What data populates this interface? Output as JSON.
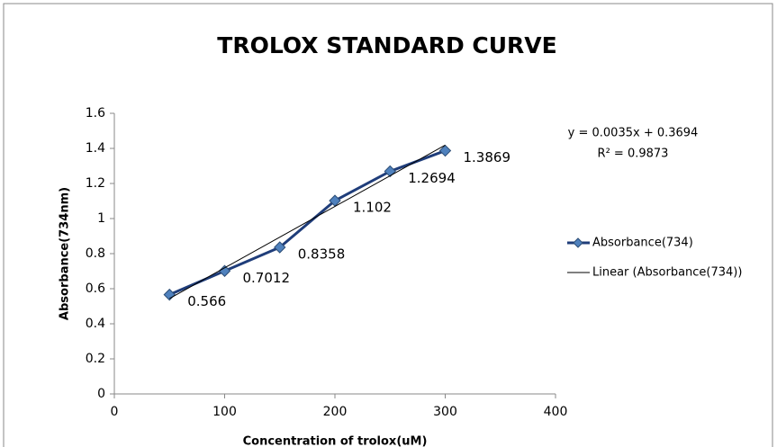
{
  "chart_data": {
    "type": "line",
    "title": "TROLOX STANDARD CURVE",
    "x_label": "Concentration of trolox(uM)",
    "y_label": "Absorbance(734nm)",
    "annotations": [
      "y = 0.0035x + 0.3694",
      "R² = 0.9873"
    ],
    "series": [
      {
        "name": "Absorbance(734)",
        "color": "#1f3d7a",
        "marker_color": "#4f81bd",
        "x": [
          50,
          100,
          150,
          200,
          250,
          300
        ],
        "values": [
          0.566,
          0.7012,
          0.8358,
          1.102,
          1.2694,
          1.3869
        ]
      },
      {
        "name": "Linear (Absorbance(734))",
        "color": "#000000",
        "x": [
          50,
          300
        ],
        "values": [
          0.544,
          1.419
        ]
      }
    ],
    "xlim": [
      0,
      400
    ],
    "xticks": [
      0,
      100,
      200,
      300,
      400
    ],
    "ylim": [
      0,
      1.6
    ],
    "yticks": [
      0,
      0.2,
      0.4,
      0.6,
      0.8,
      1,
      1.2,
      1.4,
      1.6
    ],
    "grid": false,
    "legend": "right"
  }
}
